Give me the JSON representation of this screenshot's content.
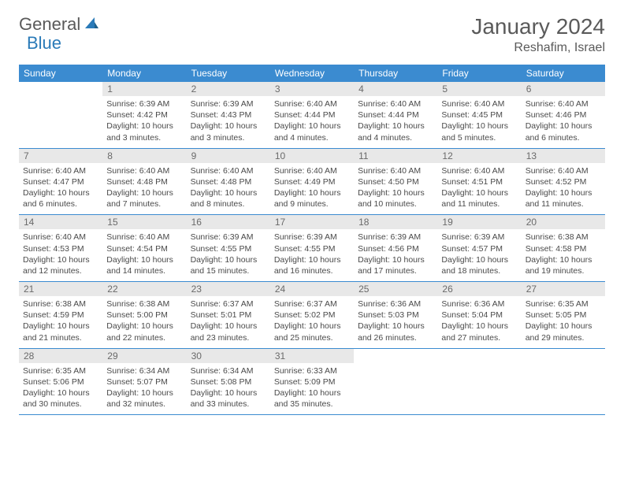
{
  "logo": {
    "text1": "General",
    "text2": "Blue"
  },
  "title": "January 2024",
  "location": "Reshafim, Israel",
  "colors": {
    "header_bg": "#3b8bd0",
    "header_text": "#ffffff",
    "daynum_bg": "#e8e8e8",
    "daynum_text": "#6a6a6a",
    "body_text": "#4a4a4a",
    "row_border": "#3b8bd0",
    "logo_gray": "#5a5a5a",
    "logo_blue": "#2a7ab8"
  },
  "day_headers": [
    "Sunday",
    "Monday",
    "Tuesday",
    "Wednesday",
    "Thursday",
    "Friday",
    "Saturday"
  ],
  "weeks": [
    [
      {
        "n": "",
        "sr": "",
        "ss": "",
        "dl": ""
      },
      {
        "n": "1",
        "sr": "Sunrise: 6:39 AM",
        "ss": "Sunset: 4:42 PM",
        "dl": "Daylight: 10 hours and 3 minutes."
      },
      {
        "n": "2",
        "sr": "Sunrise: 6:39 AM",
        "ss": "Sunset: 4:43 PM",
        "dl": "Daylight: 10 hours and 3 minutes."
      },
      {
        "n": "3",
        "sr": "Sunrise: 6:40 AM",
        "ss": "Sunset: 4:44 PM",
        "dl": "Daylight: 10 hours and 4 minutes."
      },
      {
        "n": "4",
        "sr": "Sunrise: 6:40 AM",
        "ss": "Sunset: 4:44 PM",
        "dl": "Daylight: 10 hours and 4 minutes."
      },
      {
        "n": "5",
        "sr": "Sunrise: 6:40 AM",
        "ss": "Sunset: 4:45 PM",
        "dl": "Daylight: 10 hours and 5 minutes."
      },
      {
        "n": "6",
        "sr": "Sunrise: 6:40 AM",
        "ss": "Sunset: 4:46 PM",
        "dl": "Daylight: 10 hours and 6 minutes."
      }
    ],
    [
      {
        "n": "7",
        "sr": "Sunrise: 6:40 AM",
        "ss": "Sunset: 4:47 PM",
        "dl": "Daylight: 10 hours and 6 minutes."
      },
      {
        "n": "8",
        "sr": "Sunrise: 6:40 AM",
        "ss": "Sunset: 4:48 PM",
        "dl": "Daylight: 10 hours and 7 minutes."
      },
      {
        "n": "9",
        "sr": "Sunrise: 6:40 AM",
        "ss": "Sunset: 4:48 PM",
        "dl": "Daylight: 10 hours and 8 minutes."
      },
      {
        "n": "10",
        "sr": "Sunrise: 6:40 AM",
        "ss": "Sunset: 4:49 PM",
        "dl": "Daylight: 10 hours and 9 minutes."
      },
      {
        "n": "11",
        "sr": "Sunrise: 6:40 AM",
        "ss": "Sunset: 4:50 PM",
        "dl": "Daylight: 10 hours and 10 minutes."
      },
      {
        "n": "12",
        "sr": "Sunrise: 6:40 AM",
        "ss": "Sunset: 4:51 PM",
        "dl": "Daylight: 10 hours and 11 minutes."
      },
      {
        "n": "13",
        "sr": "Sunrise: 6:40 AM",
        "ss": "Sunset: 4:52 PM",
        "dl": "Daylight: 10 hours and 11 minutes."
      }
    ],
    [
      {
        "n": "14",
        "sr": "Sunrise: 6:40 AM",
        "ss": "Sunset: 4:53 PM",
        "dl": "Daylight: 10 hours and 12 minutes."
      },
      {
        "n": "15",
        "sr": "Sunrise: 6:40 AM",
        "ss": "Sunset: 4:54 PM",
        "dl": "Daylight: 10 hours and 14 minutes."
      },
      {
        "n": "16",
        "sr": "Sunrise: 6:39 AM",
        "ss": "Sunset: 4:55 PM",
        "dl": "Daylight: 10 hours and 15 minutes."
      },
      {
        "n": "17",
        "sr": "Sunrise: 6:39 AM",
        "ss": "Sunset: 4:55 PM",
        "dl": "Daylight: 10 hours and 16 minutes."
      },
      {
        "n": "18",
        "sr": "Sunrise: 6:39 AM",
        "ss": "Sunset: 4:56 PM",
        "dl": "Daylight: 10 hours and 17 minutes."
      },
      {
        "n": "19",
        "sr": "Sunrise: 6:39 AM",
        "ss": "Sunset: 4:57 PM",
        "dl": "Daylight: 10 hours and 18 minutes."
      },
      {
        "n": "20",
        "sr": "Sunrise: 6:38 AM",
        "ss": "Sunset: 4:58 PM",
        "dl": "Daylight: 10 hours and 19 minutes."
      }
    ],
    [
      {
        "n": "21",
        "sr": "Sunrise: 6:38 AM",
        "ss": "Sunset: 4:59 PM",
        "dl": "Daylight: 10 hours and 21 minutes."
      },
      {
        "n": "22",
        "sr": "Sunrise: 6:38 AM",
        "ss": "Sunset: 5:00 PM",
        "dl": "Daylight: 10 hours and 22 minutes."
      },
      {
        "n": "23",
        "sr": "Sunrise: 6:37 AM",
        "ss": "Sunset: 5:01 PM",
        "dl": "Daylight: 10 hours and 23 minutes."
      },
      {
        "n": "24",
        "sr": "Sunrise: 6:37 AM",
        "ss": "Sunset: 5:02 PM",
        "dl": "Daylight: 10 hours and 25 minutes."
      },
      {
        "n": "25",
        "sr": "Sunrise: 6:36 AM",
        "ss": "Sunset: 5:03 PM",
        "dl": "Daylight: 10 hours and 26 minutes."
      },
      {
        "n": "26",
        "sr": "Sunrise: 6:36 AM",
        "ss": "Sunset: 5:04 PM",
        "dl": "Daylight: 10 hours and 27 minutes."
      },
      {
        "n": "27",
        "sr": "Sunrise: 6:35 AM",
        "ss": "Sunset: 5:05 PM",
        "dl": "Daylight: 10 hours and 29 minutes."
      }
    ],
    [
      {
        "n": "28",
        "sr": "Sunrise: 6:35 AM",
        "ss": "Sunset: 5:06 PM",
        "dl": "Daylight: 10 hours and 30 minutes."
      },
      {
        "n": "29",
        "sr": "Sunrise: 6:34 AM",
        "ss": "Sunset: 5:07 PM",
        "dl": "Daylight: 10 hours and 32 minutes."
      },
      {
        "n": "30",
        "sr": "Sunrise: 6:34 AM",
        "ss": "Sunset: 5:08 PM",
        "dl": "Daylight: 10 hours and 33 minutes."
      },
      {
        "n": "31",
        "sr": "Sunrise: 6:33 AM",
        "ss": "Sunset: 5:09 PM",
        "dl": "Daylight: 10 hours and 35 minutes."
      },
      {
        "n": "",
        "sr": "",
        "ss": "",
        "dl": ""
      },
      {
        "n": "",
        "sr": "",
        "ss": "",
        "dl": ""
      },
      {
        "n": "",
        "sr": "",
        "ss": "",
        "dl": ""
      }
    ]
  ]
}
